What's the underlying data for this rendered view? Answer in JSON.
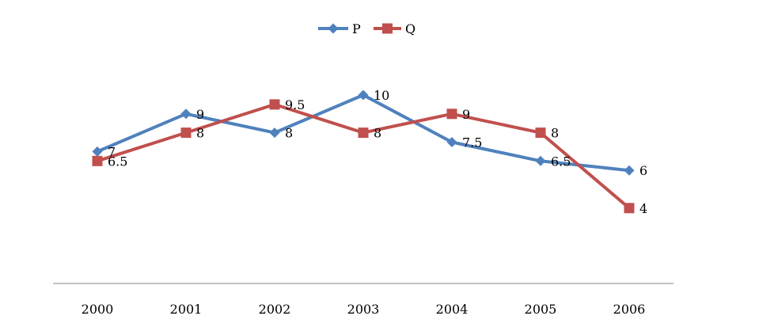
{
  "chart_data": {
    "type": "line",
    "title": "",
    "xlabel": "",
    "ylabel": "",
    "categories": [
      "2000",
      "2001",
      "2002",
      "2003",
      "2004",
      "2005",
      "2006"
    ],
    "ylim": [
      0,
      12.5
    ],
    "grid": false,
    "legend_position": "top",
    "series": [
      {
        "name": "P",
        "color": "#4F81BD",
        "marker": "diamond",
        "values": [
          7,
          9,
          8,
          10,
          7.5,
          6.5,
          6
        ],
        "labels": [
          "7",
          "9",
          "8",
          "10",
          "7.5",
          "6.5",
          "6"
        ]
      },
      {
        "name": "Q",
        "color": "#C0504D",
        "marker": "square",
        "values": [
          6.5,
          8,
          9.5,
          8,
          9,
          8,
          4
        ],
        "labels": [
          "6.5",
          "8",
          "9.5",
          "8",
          "9",
          "8",
          "4"
        ]
      }
    ]
  }
}
